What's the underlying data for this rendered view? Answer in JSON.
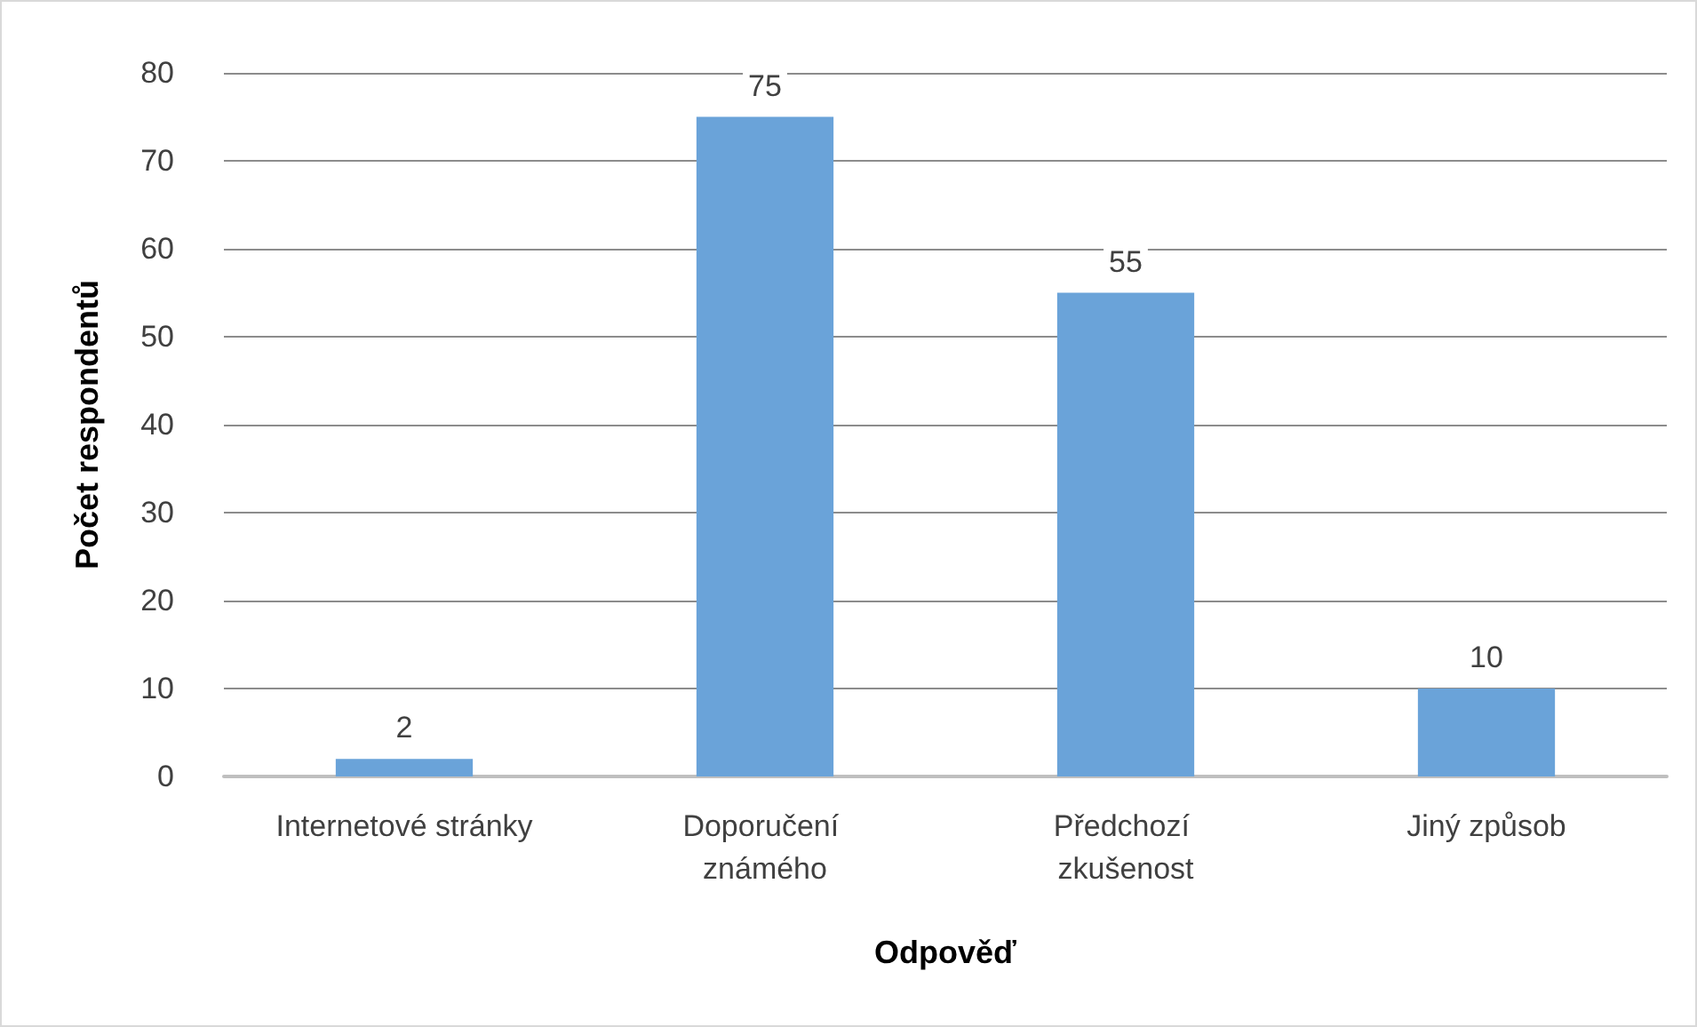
{
  "chart_data": {
    "type": "bar",
    "xlabel": "Odpověď",
    "ylabel": "Počet respondentů",
    "categories": [
      "Internetové stránky",
      "Doporučení známého",
      "Předchozí zkušenost",
      "Jiný způsob"
    ],
    "values": [
      2,
      75,
      55,
      10
    ],
    "color": "#6aa3d9",
    "ylim": [
      0,
      80
    ],
    "yticks": [
      0,
      10,
      20,
      30,
      40,
      50,
      60,
      70,
      80
    ],
    "grid": "y",
    "data_labels": true
  }
}
